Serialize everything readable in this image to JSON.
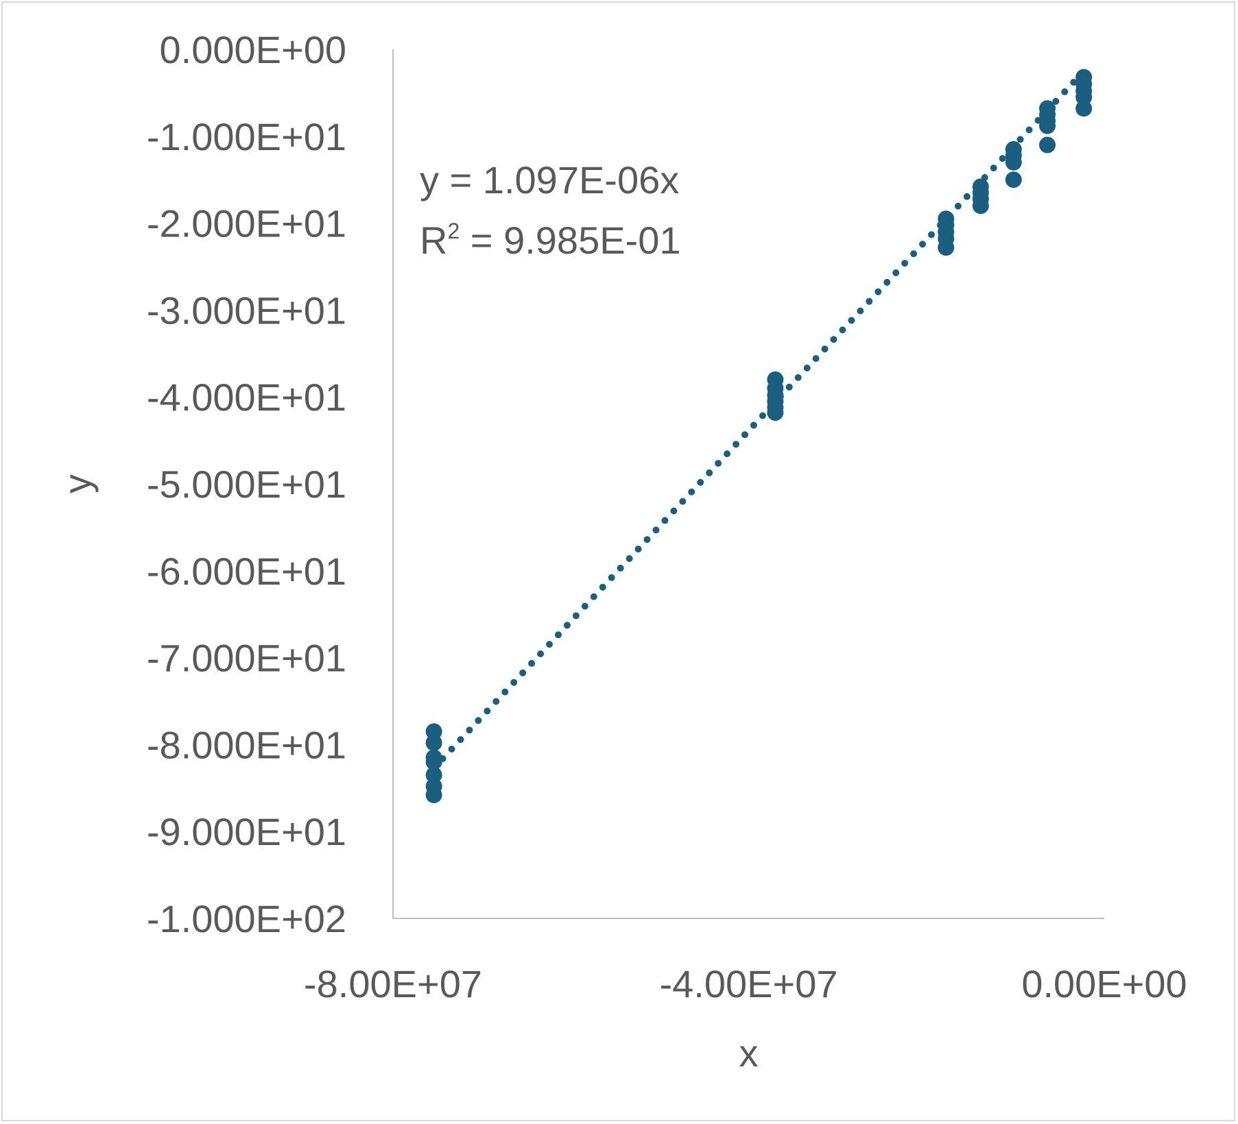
{
  "chart_data": {
    "type": "scatter",
    "title": "",
    "xlabel": "x",
    "ylabel": "y",
    "xlim": [
      -80000000,
      0
    ],
    "ylim": [
      -100,
      0
    ],
    "x_ticks": [
      {
        "value": -80000000,
        "label": "-8.00E+07"
      },
      {
        "value": -40000000,
        "label": "-4.00E+07"
      },
      {
        "value": 0,
        "label": "0.00E+00"
      }
    ],
    "y_ticks": [
      {
        "value": 0,
        "label": "0.000E+00"
      },
      {
        "value": -10,
        "label": "-1.000E+01"
      },
      {
        "value": -20,
        "label": "-2.000E+01"
      },
      {
        "value": -30,
        "label": "-3.000E+01"
      },
      {
        "value": -40,
        "label": "-4.000E+01"
      },
      {
        "value": -50,
        "label": "-5.000E+01"
      },
      {
        "value": -60,
        "label": "-6.000E+01"
      },
      {
        "value": -70,
        "label": "-7.000E+01"
      },
      {
        "value": -80,
        "label": "-8.000E+01"
      },
      {
        "value": -90,
        "label": "-9.000E+01"
      },
      {
        "value": -100,
        "label": "-1.000E+02"
      }
    ],
    "grid": false,
    "legend": "none",
    "series": [
      {
        "color": "#1a5f7f",
        "points": [
          [
            -75400000,
            -78.5
          ],
          [
            -75400000,
            -79.8
          ],
          [
            -75400000,
            -81.5
          ],
          [
            -75400000,
            -82.0
          ],
          [
            -75400000,
            -83.5
          ],
          [
            -75400000,
            -84.8
          ],
          [
            -75400000,
            -85.8
          ],
          [
            -37000000,
            -38.0
          ],
          [
            -37000000,
            -39.0
          ],
          [
            -37000000,
            -39.8
          ],
          [
            -37000000,
            -40.5
          ],
          [
            -37000000,
            -41.2
          ],
          [
            -37000000,
            -41.8
          ],
          [
            -17800000,
            -19.5
          ],
          [
            -17800000,
            -20.2
          ],
          [
            -17800000,
            -21.0
          ],
          [
            -17800000,
            -21.8
          ],
          [
            -17800000,
            -22.8
          ],
          [
            -13900000,
            -15.8
          ],
          [
            -13900000,
            -16.5
          ],
          [
            -13900000,
            -17.2
          ],
          [
            -13900000,
            -18.0
          ],
          [
            -10200000,
            -11.5
          ],
          [
            -10200000,
            -12.2
          ],
          [
            -10200000,
            -13.0
          ],
          [
            -10200000,
            -15.0
          ],
          [
            -6400000,
            -6.8
          ],
          [
            -6400000,
            -7.5
          ],
          [
            -6400000,
            -8.2
          ],
          [
            -6400000,
            -8.8
          ],
          [
            -6400000,
            -11.0
          ],
          [
            -2300000,
            -3.2
          ],
          [
            -2300000,
            -4.0
          ],
          [
            -2300000,
            -4.8
          ],
          [
            -2300000,
            -5.5
          ],
          [
            -2300000,
            -6.8
          ]
        ]
      }
    ],
    "trendline": {
      "type": "linear-through-origin",
      "slope": 1.097e-06,
      "style": "dotted",
      "color": "#1a5f7f",
      "x_range": [
        -75400000,
        -2300000
      ]
    },
    "annotations": {
      "equation": "y = 1.097E-06x",
      "r2_prefix": "R",
      "r2_sup": "2",
      "r2_rest": " = 9.985E-01"
    }
  }
}
